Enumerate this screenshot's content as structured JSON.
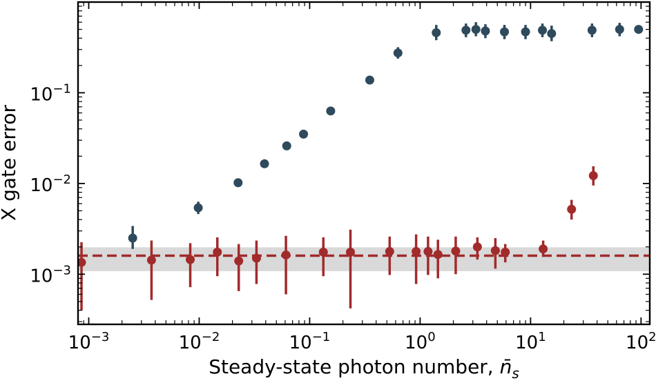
{
  "chart_data": {
    "type": "scatter",
    "xscale": "log",
    "yscale": "log",
    "xlim": [
      0.0008,
      120
    ],
    "ylim": [
      0.00028,
      1.0
    ],
    "xlabel": {
      "text": "Steady-state photon number, ",
      "symbol": "n̄",
      "subscript": "s"
    },
    "ylabel": "X gate error",
    "x_ticks": [
      {
        "value": 0.001,
        "base": "10",
        "exp": "−3"
      },
      {
        "value": 0.01,
        "base": "10",
        "exp": "−2"
      },
      {
        "value": 0.1,
        "base": "10",
        "exp": "−1"
      },
      {
        "value": 1,
        "base": "10",
        "exp": "0"
      },
      {
        "value": 10,
        "base": "10",
        "exp": "1"
      },
      {
        "value": 100,
        "base": "10",
        "exp": "2"
      }
    ],
    "y_ticks": [
      {
        "value": 0.001,
        "base": "10",
        "exp": "−3"
      },
      {
        "value": 0.01,
        "base": "10",
        "exp": "−2"
      },
      {
        "value": 0.1,
        "base": "10",
        "exp": "−1"
      }
    ],
    "grid": false,
    "series": [
      {
        "color": "#2e4a5c",
        "points": [
          {
            "x": 0.0025,
            "y": 0.0025,
            "lo": 0.0019,
            "hi": 0.0034
          },
          {
            "x": 0.0098,
            "y": 0.0054,
            "lo": 0.0046,
            "hi": 0.0063
          },
          {
            "x": 0.0225,
            "y": 0.0102,
            "lo": 0.0093,
            "hi": 0.0112
          },
          {
            "x": 0.039,
            "y": 0.0165,
            "lo": 0.0155,
            "hi": 0.0176
          },
          {
            "x": 0.062,
            "y": 0.026,
            "lo": 0.0246,
            "hi": 0.0275
          },
          {
            "x": 0.088,
            "y": 0.035,
            "lo": 0.0332,
            "hi": 0.037
          },
          {
            "x": 0.155,
            "y": 0.063,
            "lo": 0.06,
            "hi": 0.067
          },
          {
            "x": 0.35,
            "y": 0.138,
            "lo": 0.125,
            "hi": 0.152
          },
          {
            "x": 0.63,
            "y": 0.275,
            "lo": 0.238,
            "hi": 0.318
          },
          {
            "x": 1.4,
            "y": 0.46,
            "lo": 0.38,
            "hi": 0.56
          },
          {
            "x": 2.6,
            "y": 0.49,
            "lo": 0.41,
            "hi": 0.58
          },
          {
            "x": 3.2,
            "y": 0.5,
            "lo": 0.42,
            "hi": 0.6
          },
          {
            "x": 3.9,
            "y": 0.48,
            "lo": 0.4,
            "hi": 0.57
          },
          {
            "x": 5.8,
            "y": 0.47,
            "lo": 0.39,
            "hi": 0.56
          },
          {
            "x": 9.0,
            "y": 0.47,
            "lo": 0.39,
            "hi": 0.56
          },
          {
            "x": 12.8,
            "y": 0.49,
            "lo": 0.41,
            "hi": 0.58
          },
          {
            "x": 15.5,
            "y": 0.45,
            "lo": 0.37,
            "hi": 0.55
          },
          {
            "x": 36.0,
            "y": 0.49,
            "lo": 0.41,
            "hi": 0.58
          },
          {
            "x": 64.0,
            "y": 0.5,
            "lo": 0.42,
            "hi": 0.59
          },
          {
            "x": 95.0,
            "y": 0.5,
            "lo": 0.5,
            "hi": 0.5
          }
        ]
      },
      {
        "color": "#a12b2b",
        "points": [
          {
            "x": 0.00086,
            "y": 0.00135,
            "lo": 0.0004,
            "hi": 0.00225
          },
          {
            "x": 0.0037,
            "y": 0.00143,
            "lo": 0.00052,
            "hi": 0.00235
          },
          {
            "x": 0.0083,
            "y": 0.00145,
            "lo": 0.00072,
            "hi": 0.0022
          },
          {
            "x": 0.0146,
            "y": 0.00175,
            "lo": 0.00095,
            "hi": 0.00255
          },
          {
            "x": 0.0228,
            "y": 0.0014,
            "lo": 0.00065,
            "hi": 0.00215
          },
          {
            "x": 0.033,
            "y": 0.0015,
            "lo": 0.00078,
            "hi": 0.00235
          },
          {
            "x": 0.061,
            "y": 0.00163,
            "lo": 0.0006,
            "hi": 0.00265
          },
          {
            "x": 0.133,
            "y": 0.00175,
            "lo": 0.00095,
            "hi": 0.00255
          },
          {
            "x": 0.234,
            "y": 0.00175,
            "lo": 0.00042,
            "hi": 0.0031
          },
          {
            "x": 0.53,
            "y": 0.00178,
            "lo": 0.00098,
            "hi": 0.0026
          },
          {
            "x": 0.92,
            "y": 0.00178,
            "lo": 0.00078,
            "hi": 0.00275
          },
          {
            "x": 1.18,
            "y": 0.00178,
            "lo": 0.00098,
            "hi": 0.0026
          },
          {
            "x": 1.45,
            "y": 0.00165,
            "lo": 0.0009,
            "hi": 0.0024
          },
          {
            "x": 2.1,
            "y": 0.0018,
            "lo": 0.001,
            "hi": 0.0026
          },
          {
            "x": 3.3,
            "y": 0.002,
            "lo": 0.00145,
            "hi": 0.00255
          },
          {
            "x": 4.8,
            "y": 0.00182,
            "lo": 0.00115,
            "hi": 0.0025
          },
          {
            "x": 5.9,
            "y": 0.00175,
            "lo": 0.00135,
            "hi": 0.00215
          },
          {
            "x": 13.0,
            "y": 0.0019,
            "lo": 0.00155,
            "hi": 0.00235
          },
          {
            "x": 23.5,
            "y": 0.0052,
            "lo": 0.004,
            "hi": 0.0066
          },
          {
            "x": 37.0,
            "y": 0.0122,
            "lo": 0.0095,
            "hi": 0.0155
          }
        ]
      }
    ],
    "reference_line": {
      "y": 0.0016,
      "color": "#a12b2b",
      "style": "dashed"
    },
    "reference_band": {
      "y_low": 0.00108,
      "y_high": 0.00198,
      "color": "#d9d9d9"
    }
  }
}
